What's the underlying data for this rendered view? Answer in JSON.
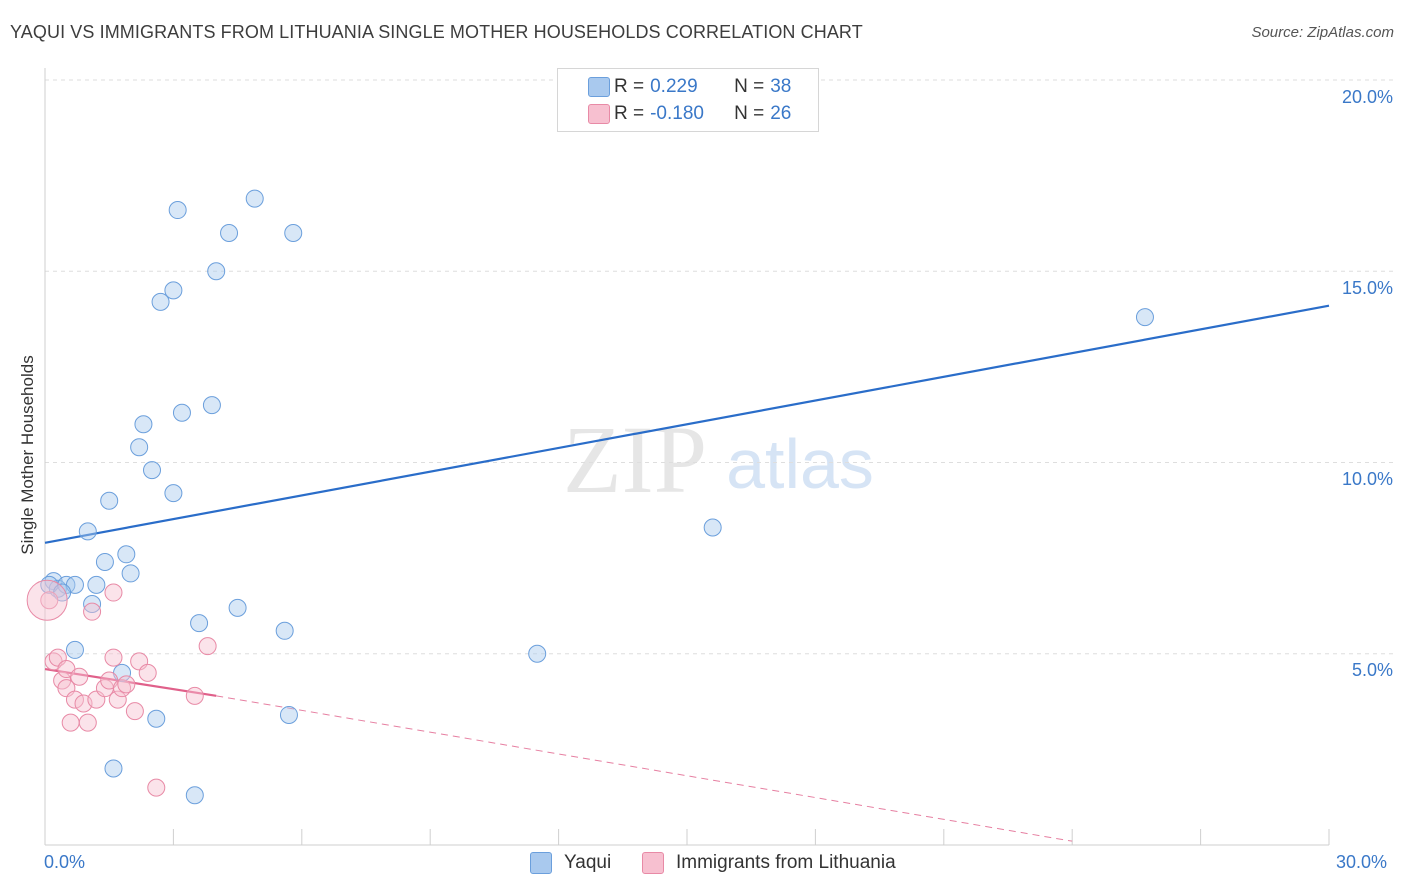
{
  "header": {
    "title": "YAQUI VS IMMIGRANTS FROM LITHUANIA SINGLE MOTHER HOUSEHOLDS CORRELATION CHART",
    "source": "Source: ZipAtlas.com"
  },
  "watermark": {
    "zip": "ZIP",
    "atlas": "atlas"
  },
  "legend": {
    "r_label": "R =",
    "n_label": "N =",
    "rows": [
      {
        "r": "0.229",
        "n": "38",
        "color": "#a9c9ee",
        "border": "#6b9fdc"
      },
      {
        "r": "-0.180",
        "n": "26",
        "color": "#f7c0d0",
        "border": "#e88aa6"
      }
    ]
  },
  "bottom_legend": [
    "Yaqui",
    "Immigrants from Lithuania"
  ],
  "chart_data": {
    "type": "scatter",
    "title": "YAQUI VS IMMIGRANTS FROM LITHUANIA SINGLE MOTHER HOUSEHOLDS CORRELATION CHART",
    "xlabel": "",
    "ylabel": "Single Mother Households",
    "xlim": [
      0,
      30
    ],
    "ylim": [
      0,
      20
    ],
    "x_tick_labels": [
      "0.0%",
      "30.0%"
    ],
    "y_tick_labels": [
      "5.0%",
      "10.0%",
      "15.0%",
      "20.0%"
    ],
    "y_ticks": [
      5,
      10,
      15,
      20
    ],
    "grid": true,
    "series": [
      {
        "name": "Yaqui",
        "color": "#6b9fdc",
        "fill": "rgba(169,201,238,0.45)",
        "trend": {
          "x": [
            0,
            30
          ],
          "y": [
            7.9,
            14.1
          ],
          "color": "#2a6dc9"
        },
        "points": [
          [
            0.2,
            6.9
          ],
          [
            0.3,
            6.7
          ],
          [
            0.5,
            6.8
          ],
          [
            0.7,
            6.8
          ],
          [
            0.7,
            5.1
          ],
          [
            1.0,
            8.2
          ],
          [
            1.1,
            6.3
          ],
          [
            1.2,
            6.8
          ],
          [
            1.4,
            7.4
          ],
          [
            1.5,
            9.0
          ],
          [
            1.6,
            2.0
          ],
          [
            1.8,
            4.5
          ],
          [
            1.9,
            7.6
          ],
          [
            2.0,
            7.1
          ],
          [
            2.2,
            10.4
          ],
          [
            2.3,
            11.0
          ],
          [
            2.5,
            9.8
          ],
          [
            2.6,
            3.3
          ],
          [
            2.7,
            14.2
          ],
          [
            3.0,
            14.5
          ],
          [
            3.0,
            9.2
          ],
          [
            3.1,
            16.6
          ],
          [
            3.2,
            11.3
          ],
          [
            3.5,
            1.3
          ],
          [
            3.6,
            5.8
          ],
          [
            3.9,
            11.5
          ],
          [
            4.0,
            15.0
          ],
          [
            4.3,
            16.0
          ],
          [
            4.5,
            6.2
          ],
          [
            4.9,
            16.9
          ],
          [
            5.6,
            5.6
          ],
          [
            5.7,
            3.4
          ],
          [
            5.8,
            16.0
          ],
          [
            11.5,
            5.0
          ],
          [
            15.6,
            8.3
          ],
          [
            25.7,
            13.8
          ],
          [
            0.1,
            6.8
          ],
          [
            0.4,
            6.6
          ]
        ]
      },
      {
        "name": "Immigrants from Lithuania",
        "color": "#e88aa6",
        "fill": "rgba(247,192,208,0.45)",
        "trend": {
          "x": [
            0,
            4.0
          ],
          "y": [
            4.6,
            3.9
          ],
          "color": "#e0608a"
        },
        "trend_dashed": {
          "x": [
            4.0,
            24.0
          ],
          "y": [
            3.9,
            0.1
          ]
        },
        "points": [
          [
            0.1,
            6.4
          ],
          [
            0.2,
            4.8
          ],
          [
            0.3,
            4.9
          ],
          [
            0.4,
            4.3
          ],
          [
            0.5,
            4.6
          ],
          [
            0.5,
            4.1
          ],
          [
            0.6,
            3.2
          ],
          [
            0.7,
            3.8
          ],
          [
            0.8,
            4.4
          ],
          [
            0.9,
            3.7
          ],
          [
            1.0,
            3.2
          ],
          [
            1.1,
            6.1
          ],
          [
            1.2,
            3.8
          ],
          [
            1.4,
            4.1
          ],
          [
            1.5,
            4.3
          ],
          [
            1.6,
            6.6
          ],
          [
            1.6,
            4.9
          ],
          [
            1.7,
            3.8
          ],
          [
            1.8,
            4.1
          ],
          [
            1.9,
            4.2
          ],
          [
            2.1,
            3.5
          ],
          [
            2.2,
            4.8
          ],
          [
            2.4,
            4.5
          ],
          [
            2.6,
            1.5
          ],
          [
            3.5,
            3.9
          ],
          [
            3.8,
            5.2
          ]
        ]
      }
    ]
  }
}
